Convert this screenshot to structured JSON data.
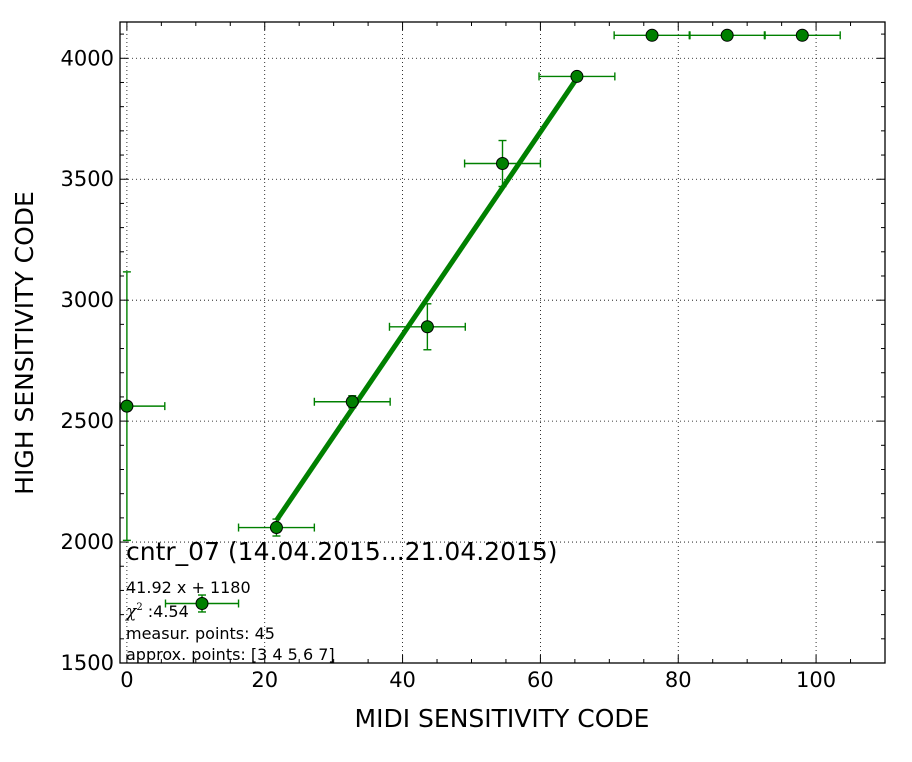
{
  "chart_data": {
    "type": "scatter",
    "title": "",
    "xlabel": "MIDI SENSITIVITY CODE",
    "ylabel": "HIGH SENSITIVITY CODE",
    "xlim": [
      -1,
      110
    ],
    "ylim": [
      1500,
      4150
    ],
    "xticks": [
      0,
      20,
      40,
      60,
      80,
      100
    ],
    "yticks": [
      1500,
      2000,
      2500,
      3000,
      3500,
      4000
    ],
    "grid": true,
    "colors": {
      "points": "#008000",
      "fit_line": "#008000",
      "marker_edge": "#000000"
    },
    "points": [
      {
        "x": 0.0,
        "y": 2562,
        "xerr": 5.5,
        "yerr": 555
      },
      {
        "x": 10.9,
        "y": 1746,
        "xerr": 5.3,
        "yerr": 35
      },
      {
        "x": 21.7,
        "y": 2060,
        "xerr": 5.5,
        "yerr": 35
      },
      {
        "x": 32.7,
        "y": 2580,
        "xerr": 5.5,
        "yerr": 25
      },
      {
        "x": 43.6,
        "y": 2890,
        "xerr": 5.5,
        "yerr": 95
      },
      {
        "x": 54.5,
        "y": 3565,
        "xerr": 5.5,
        "yerr": 95
      },
      {
        "x": 65.3,
        "y": 3925,
        "xerr": 5.5,
        "yerr": 0
      },
      {
        "x": 76.2,
        "y": 4095,
        "xerr": 5.5,
        "yerr": 0
      },
      {
        "x": 87.1,
        "y": 4095,
        "xerr": 5.5,
        "yerr": 0
      },
      {
        "x": 98.0,
        "y": 4095,
        "xerr": 5.5,
        "yerr": 0
      }
    ],
    "fit_line": {
      "slope": 41.92,
      "intercept": 1180,
      "x_range": [
        21.7,
        65.3
      ]
    },
    "annotations": {
      "title_note": "cntr_07 (14.04.2015...21.04.2015)",
      "equation": "41.92 x + 1180",
      "chi_symbol": "χ",
      "chi_sup": "2",
      "chi_value": " :4.54",
      "measur": "measur. points: 45",
      "approx": "approx. points: [3 4 5 6 7]"
    }
  }
}
